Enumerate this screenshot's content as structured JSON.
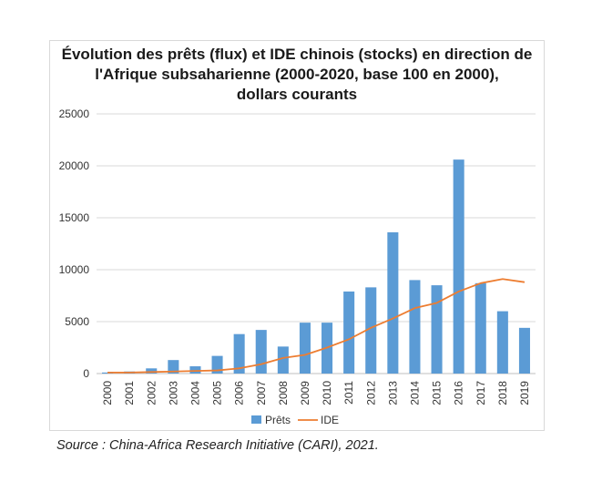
{
  "chart_data": {
    "type": "bar",
    "title_lines": [
      "Évolution des prêts (flux) et IDE chinois (stocks) en direction de",
      "l'Afrique subsaharienne (2000-2020, base 100 en 2000),",
      "dollars courants"
    ],
    "x": [
      "2000",
      "2001",
      "2002",
      "2003",
      "2004",
      "2005",
      "2006",
      "2007",
      "2008",
      "2009",
      "2010",
      "2011",
      "2012",
      "2013",
      "2014",
      "2015",
      "2016",
      "2017",
      "2018",
      "2019"
    ],
    "y_ticks": [
      "0",
      "5000",
      "10000",
      "15000",
      "20000",
      "25000"
    ],
    "ylim": [
      0,
      25000
    ],
    "grid": true,
    "legend_position": "bottom",
    "series": [
      {
        "name": "Prêts",
        "kind": "bar",
        "color": "#5b9bd5",
        "values": [
          100,
          200,
          500,
          1300,
          700,
          1700,
          3800,
          4200,
          2600,
          4900,
          4900,
          7900,
          8300,
          13600,
          9000,
          8500,
          20600,
          8700,
          6000,
          4400
        ]
      },
      {
        "name": "IDE",
        "kind": "line",
        "color": "#ed7d31",
        "values": [
          100,
          100,
          150,
          200,
          250,
          300,
          500,
          900,
          1500,
          1800,
          2500,
          3300,
          4400,
          5300,
          6300,
          6800,
          7900,
          8700,
          9100,
          8800
        ]
      }
    ]
  },
  "source": "Source : China-Africa Research Initiative (CARI), 2021."
}
